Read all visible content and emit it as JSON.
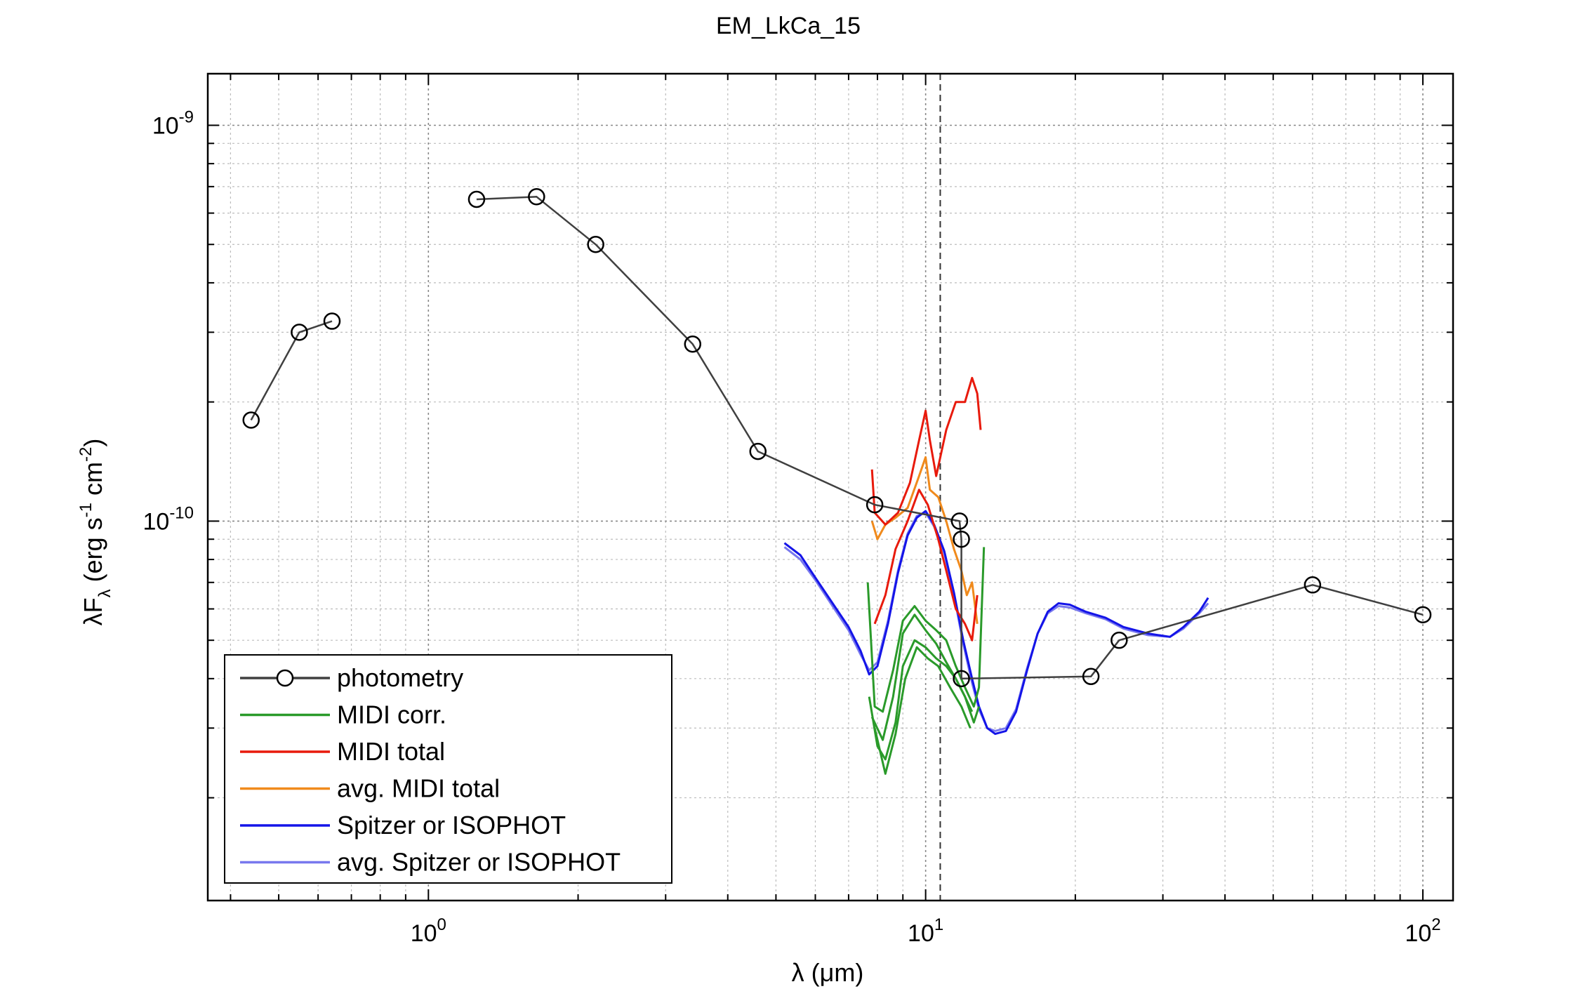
{
  "chart_data": {
    "type": "line",
    "title": "EM_LkCa_15",
    "xlabel": "λ (μm)",
    "ylabel": {
      "main": "λF",
      "sub": "λ",
      "unit_open": " (erg s",
      "exp1": "-1",
      "unit_mid": " cm",
      "exp2": "-2",
      "unit_close": ")"
    },
    "x_scale": "log",
    "y_scale": "log",
    "xlim": [
      0.36,
      115
    ],
    "ylim": [
      1.1e-11,
      1.35e-09
    ],
    "x_ticks": [
      {
        "value": 1,
        "base": "10",
        "exp": "0"
      },
      {
        "value": 10,
        "base": "10",
        "exp": "1"
      },
      {
        "value": 100,
        "base": "10",
        "exp": "2"
      }
    ],
    "y_ticks": [
      {
        "value": 1e-10,
        "base": "10",
        "exp": "-10"
      },
      {
        "value": 1e-09,
        "base": "10",
        "exp": "-9"
      }
    ],
    "grid": true,
    "legend_position": "bottom-left",
    "vline_x": 10.7,
    "series": [
      {
        "name": "photometry",
        "color": "#404040",
        "marker": "circle",
        "segments": [
          [
            [
              0.44,
              1.8e-10
            ],
            [
              0.55,
              3e-10
            ],
            [
              0.64,
              3.2e-10
            ]
          ],
          [
            [
              1.25,
              6.5e-10
            ],
            [
              1.65,
              6.6e-10
            ],
            [
              2.17,
              5e-10
            ],
            [
              3.4,
              2.8e-10
            ],
            [
              4.6,
              1.5e-10
            ],
            [
              7.9,
              1.1e-10
            ],
            [
              11.7,
              1e-10
            ],
            [
              11.8,
              9e-11
            ],
            [
              11.8,
              4e-11
            ],
            [
              21.5,
              4.05e-11
            ],
            [
              24.5,
              5e-11
            ],
            [
              60,
              6.9e-11
            ],
            [
              100,
              5.8e-11
            ]
          ]
        ]
      },
      {
        "name": "MIDI corr.",
        "color": "#2a9a2a",
        "marker": "none",
        "segments": [
          [
            [
              7.65,
              7e-11
            ],
            [
              7.9,
              3.4e-11
            ],
            [
              8.2,
              3.3e-11
            ],
            [
              8.6,
              4.2e-11
            ],
            [
              9.0,
              5.6e-11
            ],
            [
              9.5,
              6.1e-11
            ],
            [
              10.0,
              5.6e-11
            ],
            [
              10.5,
              5.3e-11
            ],
            [
              11.0,
              5e-11
            ],
            [
              11.5,
              4.3e-11
            ],
            [
              12.0,
              3.8e-11
            ],
            [
              12.5,
              3.4e-11
            ],
            [
              12.8,
              3.8e-11
            ],
            [
              13.1,
              8.6e-11
            ]
          ],
          [
            [
              7.8,
              3.2e-11
            ],
            [
              8.2,
              2.8e-11
            ],
            [
              8.6,
              3.6e-11
            ],
            [
              9.0,
              5.2e-11
            ],
            [
              9.5,
              5.8e-11
            ],
            [
              10.0,
              5.3e-11
            ],
            [
              10.5,
              4.9e-11
            ],
            [
              11.0,
              4.4e-11
            ],
            [
              11.5,
              4e-11
            ],
            [
              12.0,
              3.6e-11
            ],
            [
              12.4,
              3.3e-11
            ]
          ],
          [
            [
              7.7,
              3.6e-11
            ],
            [
              8.0,
              2.7e-11
            ],
            [
              8.3,
              2.5e-11
            ],
            [
              8.7,
              3.1e-11
            ],
            [
              9.0,
              4.3e-11
            ],
            [
              9.5,
              5e-11
            ],
            [
              10.0,
              4.8e-11
            ],
            [
              10.5,
              4.5e-11
            ],
            [
              11.0,
              4.3e-11
            ],
            [
              11.5,
              4e-11
            ],
            [
              12.0,
              3.6e-11
            ],
            [
              12.5,
              3.1e-11
            ],
            [
              12.8,
              3.4e-11
            ]
          ],
          [
            [
              7.9,
              3e-11
            ],
            [
              8.3,
              2.3e-11
            ],
            [
              8.7,
              2.9e-11
            ],
            [
              9.1,
              4e-11
            ],
            [
              9.6,
              4.8e-11
            ],
            [
              10.1,
              4.5e-11
            ],
            [
              10.6,
              4.3e-11
            ],
            [
              11.2,
              3.8e-11
            ],
            [
              11.8,
              3.4e-11
            ],
            [
              12.3,
              3e-11
            ]
          ]
        ]
      },
      {
        "name": "MIDI total",
        "color": "#e81a0c",
        "marker": "none",
        "segments": [
          [
            [
              7.8,
              1.35e-10
            ],
            [
              7.9,
              1.05e-10
            ],
            [
              8.3,
              9.8e-11
            ],
            [
              8.8,
              1.05e-10
            ],
            [
              9.3,
              1.25e-10
            ],
            [
              9.7,
              1.6e-10
            ],
            [
              10.0,
              1.9e-10
            ],
            [
              10.2,
              1.6e-10
            ],
            [
              10.5,
              1.3e-10
            ],
            [
              11.0,
              1.7e-10
            ],
            [
              11.5,
              2e-10
            ],
            [
              12.0,
              2e-10
            ],
            [
              12.4,
              2.3e-10
            ],
            [
              12.7,
              2.1e-10
            ],
            [
              12.9,
              1.7e-10
            ]
          ],
          [
            [
              7.9,
              5.5e-11
            ],
            [
              8.3,
              6.5e-11
            ],
            [
              8.7,
              8.5e-11
            ],
            [
              9.2,
              1e-10
            ],
            [
              9.7,
              1.2e-10
            ],
            [
              10.1,
              1.1e-10
            ],
            [
              10.6,
              9e-11
            ],
            [
              11.0,
              7.5e-11
            ],
            [
              11.5,
              6e-11
            ],
            [
              12.0,
              5.5e-11
            ],
            [
              12.4,
              5e-11
            ],
            [
              12.7,
              6.5e-11
            ]
          ]
        ]
      },
      {
        "name": "avg. MIDI total",
        "color": "#f08a1c",
        "marker": "none",
        "segments": [
          [
            [
              7.8,
              1e-10
            ],
            [
              8.0,
              9e-11
            ],
            [
              8.3,
              9.8e-11
            ],
            [
              8.7,
              1.02e-10
            ],
            [
              9.2,
              1.08e-10
            ],
            [
              9.7,
              1.3e-10
            ],
            [
              10.0,
              1.45e-10
            ],
            [
              10.2,
              1.2e-10
            ],
            [
              10.6,
              1.15e-10
            ],
            [
              11.0,
              1e-10
            ],
            [
              11.4,
              8.5e-11
            ],
            [
              11.8,
              7.5e-11
            ],
            [
              12.1,
              6.5e-11
            ],
            [
              12.4,
              7e-11
            ],
            [
              12.7,
              5.5e-11
            ]
          ]
        ]
      },
      {
        "name": "Spitzer or ISOPHOT",
        "color": "#1414e8",
        "marker": "none",
        "segments": [
          [
            [
              5.2,
              8.8e-11
            ],
            [
              5.6,
              8.2e-11
            ],
            [
              6.0,
              7.2e-11
            ],
            [
              6.5,
              6.2e-11
            ],
            [
              7.0,
              5.4e-11
            ],
            [
              7.4,
              4.7e-11
            ],
            [
              7.7,
              4.1e-11
            ],
            [
              8.0,
              4.3e-11
            ],
            [
              8.4,
              5.5e-11
            ],
            [
              8.8,
              7.4e-11
            ],
            [
              9.2,
              9.2e-11
            ],
            [
              9.6,
              1.02e-10
            ],
            [
              10.0,
              1.06e-10
            ],
            [
              10.4,
              9.8e-11
            ],
            [
              10.9,
              8.4e-11
            ],
            [
              11.4,
              6.6e-11
            ],
            [
              11.9,
              5e-11
            ],
            [
              12.4,
              4e-11
            ],
            [
              12.8,
              3.4e-11
            ],
            [
              13.3,
              3e-11
            ],
            [
              13.8,
              2.9e-11
            ],
            [
              14.5,
              2.95e-11
            ],
            [
              15.2,
              3.3e-11
            ],
            [
              16.0,
              4.2e-11
            ],
            [
              16.8,
              5.2e-11
            ],
            [
              17.6,
              5.9e-11
            ],
            [
              18.5,
              6.2e-11
            ],
            [
              19.5,
              6.15e-11
            ],
            [
              21.0,
              5.9e-11
            ],
            [
              23.0,
              5.7e-11
            ],
            [
              25.0,
              5.4e-11
            ],
            [
              28.0,
              5.2e-11
            ],
            [
              31.0,
              5.1e-11
            ],
            [
              33.0,
              5.4e-11
            ],
            [
              35.5,
              5.9e-11
            ],
            [
              37.0,
              6.4e-11
            ]
          ]
        ]
      },
      {
        "name": "avg. Spitzer or ISOPHOT",
        "color": "#7878ee",
        "marker": "none",
        "segments": [
          [
            [
              5.2,
              8.6e-11
            ],
            [
              5.6,
              8e-11
            ],
            [
              6.0,
              7.1e-11
            ],
            [
              6.5,
              6.1e-11
            ],
            [
              7.0,
              5.3e-11
            ],
            [
              7.4,
              4.6e-11
            ],
            [
              7.7,
              4.2e-11
            ],
            [
              8.0,
              4.4e-11
            ],
            [
              8.4,
              5.6e-11
            ],
            [
              8.8,
              7.5e-11
            ],
            [
              9.2,
              9.3e-11
            ],
            [
              9.6,
              1.03e-10
            ],
            [
              10.0,
              1.05e-10
            ],
            [
              10.4,
              9.7e-11
            ],
            [
              10.9,
              8.3e-11
            ],
            [
              11.4,
              6.5e-11
            ],
            [
              11.9,
              4.9e-11
            ],
            [
              12.4,
              3.9e-11
            ],
            [
              12.8,
              3.35e-11
            ],
            [
              13.3,
              3e-11
            ],
            [
              13.8,
              2.95e-11
            ],
            [
              14.5,
              3e-11
            ],
            [
              15.2,
              3.35e-11
            ],
            [
              16.0,
              4.25e-11
            ],
            [
              16.8,
              5.2e-11
            ],
            [
              17.6,
              5.85e-11
            ],
            [
              18.5,
              6.1e-11
            ],
            [
              19.5,
              6.05e-11
            ],
            [
              21.0,
              5.85e-11
            ],
            [
              23.0,
              5.65e-11
            ],
            [
              25.0,
              5.35e-11
            ],
            [
              28.0,
              5.15e-11
            ],
            [
              31.0,
              5.1e-11
            ],
            [
              33.0,
              5.35e-11
            ],
            [
              35.5,
              5.85e-11
            ],
            [
              37.0,
              6.2e-11
            ]
          ]
        ]
      }
    ]
  }
}
